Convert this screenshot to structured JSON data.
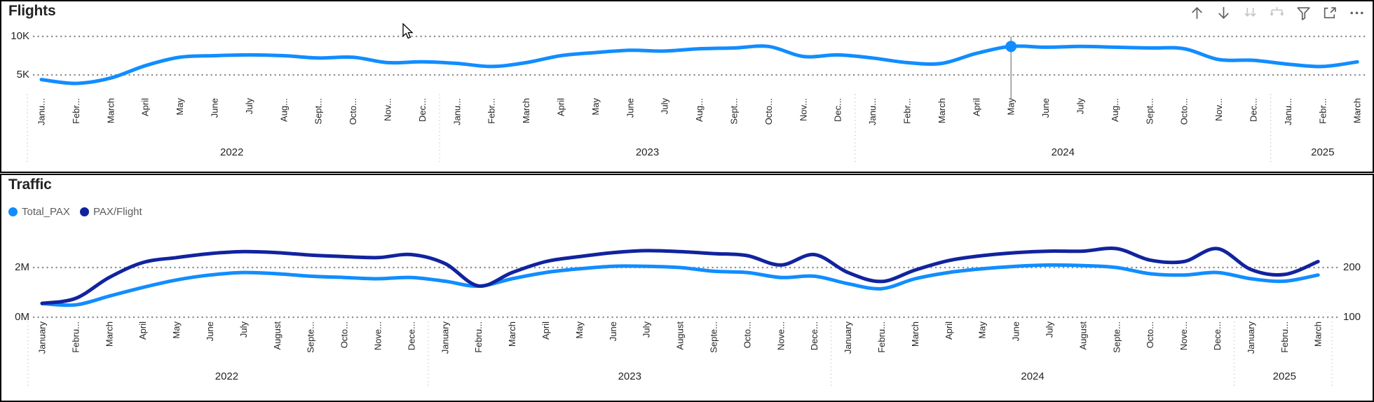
{
  "colors": {
    "light_blue": "#118DFF",
    "dark_blue": "#12239E",
    "gridline": "#8C8C8C",
    "separator": "#C8C6C4",
    "axis_text": "#252423"
  },
  "flights": {
    "title": "Flights",
    "toolbar": {
      "icons": [
        {
          "name": "drill-up",
          "enabled": true
        },
        {
          "name": "drill-down",
          "enabled": true
        },
        {
          "name": "go-to-next-level",
          "enabled": false
        },
        {
          "name": "expand-next-level",
          "enabled": false
        },
        {
          "name": "filter",
          "enabled": true
        },
        {
          "name": "focus-mode",
          "enabled": true
        },
        {
          "name": "more-options",
          "enabled": true
        }
      ]
    },
    "chart_data": {
      "type": "line",
      "title": "Flights",
      "grid": "dotted horizontal",
      "legend_position": "none",
      "y_ticks": [
        "10K",
        "5K"
      ],
      "y_unit": "flights (thousands)",
      "years": [
        {
          "label": "2022",
          "months": [
            "Janu...",
            "Febr...",
            "March",
            "April",
            "May",
            "June",
            "July",
            "Aug...",
            "Sept...",
            "Octo...",
            "Nov...",
            "Dec..."
          ]
        },
        {
          "label": "2023",
          "months": [
            "Janu...",
            "Febr...",
            "March",
            "April",
            "May",
            "June",
            "July",
            "Aug...",
            "Sept...",
            "Octo...",
            "Nov...",
            "Dec..."
          ]
        },
        {
          "label": "2024",
          "months": [
            "Janu...",
            "Febr...",
            "March",
            "April",
            "May",
            "June",
            "July",
            "Aug...",
            "Sept...",
            "Octo...",
            "Nov...",
            "Dec..."
          ]
        },
        {
          "label": "2025",
          "months": [
            "Janu...",
            "Febr...",
            "March"
          ]
        }
      ],
      "series": [
        {
          "name": "Flights",
          "color": "#118DFF",
          "unit": "K",
          "values": [
            4.4,
            3.9,
            4.6,
            6.2,
            7.3,
            7.5,
            7.6,
            7.5,
            7.2,
            7.3,
            6.6,
            6.7,
            6.5,
            6.1,
            6.6,
            7.5,
            7.9,
            8.2,
            8.1,
            8.4,
            8.5,
            8.7,
            7.4,
            7.6,
            7.2,
            6.6,
            6.5,
            7.8,
            8.7,
            8.6,
            8.7,
            8.6,
            8.5,
            8.4,
            7.0,
            6.9,
            6.4,
            6.1,
            6.7
          ]
        }
      ],
      "selected_point": {
        "x_index": 28,
        "month": "May",
        "year": "2024",
        "value_k": 8.7
      }
    }
  },
  "traffic": {
    "title": "Traffic",
    "legend": [
      {
        "label": "Total_PAX",
        "color": "#118DFF"
      },
      {
        "label": "PAX/Flight",
        "color": "#12239E"
      }
    ],
    "chart_data": {
      "type": "line",
      "title": "Traffic",
      "grid": "dotted horizontal",
      "legend_position": "top-left",
      "left_axis": {
        "ticks": [
          "2M",
          "0M"
        ],
        "unit": "passengers (millions)"
      },
      "right_axis": {
        "ticks": [
          "200",
          "100"
        ],
        "unit": "PAX per flight"
      },
      "years": [
        {
          "label": "2022",
          "months": [
            "January",
            "Febru...",
            "March",
            "April",
            "May",
            "June",
            "July",
            "August",
            "Septe...",
            "Octo...",
            "Nove...",
            "Dece..."
          ]
        },
        {
          "label": "2023",
          "months": [
            "January",
            "Febru...",
            "March",
            "April",
            "May",
            "June",
            "July",
            "August",
            "Septe...",
            "Octo...",
            "Nove...",
            "Dece..."
          ]
        },
        {
          "label": "2024",
          "months": [
            "January",
            "Febru...",
            "March",
            "April",
            "May",
            "June",
            "July",
            "August",
            "Septe...",
            "Octo...",
            "Nove...",
            "Dece..."
          ]
        },
        {
          "label": "2025",
          "months": [
            "January",
            "Febru...",
            "March"
          ]
        }
      ],
      "series": [
        {
          "name": "Total_PAX",
          "color": "#118DFF",
          "axis": "left",
          "unit": "M",
          "values": [
            0.55,
            0.5,
            0.85,
            1.2,
            1.5,
            1.7,
            1.8,
            1.75,
            1.65,
            1.6,
            1.55,
            1.6,
            1.45,
            1.25,
            1.55,
            1.8,
            1.95,
            2.05,
            2.05,
            2.0,
            1.85,
            1.8,
            1.6,
            1.65,
            1.35,
            1.15,
            1.55,
            1.8,
            1.95,
            2.05,
            2.1,
            2.08,
            2.0,
            1.75,
            1.7,
            1.8,
            1.55,
            1.45,
            1.7
          ]
        },
        {
          "name": "PAX/Flight",
          "color": "#12239E",
          "axis": "right",
          "unit": "",
          "values": [
            128,
            138,
            180,
            210,
            220,
            228,
            232,
            230,
            225,
            222,
            220,
            226,
            208,
            163,
            190,
            212,
            222,
            230,
            234,
            232,
            228,
            224,
            205,
            226,
            190,
            172,
            195,
            214,
            224,
            230,
            233,
            233,
            238,
            215,
            212,
            238,
            196,
            186,
            212
          ]
        }
      ]
    }
  }
}
